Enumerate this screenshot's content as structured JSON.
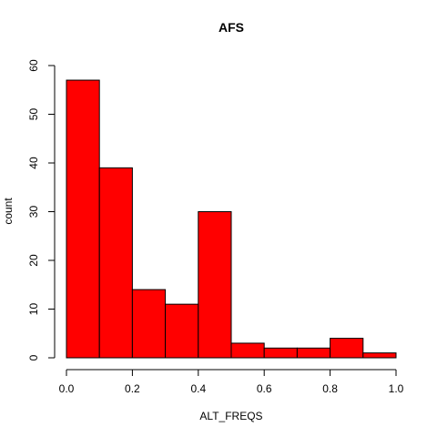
{
  "chart_data": {
    "type": "histogram",
    "title": "AFS",
    "xlabel": "ALT_FREQS",
    "ylabel": "count",
    "bin_edges": [
      0.0,
      0.1,
      0.2,
      0.3,
      0.4,
      0.5,
      0.6,
      0.7,
      0.8,
      0.9,
      1.0
    ],
    "counts": [
      57,
      39,
      14,
      11,
      30,
      3,
      2,
      2,
      4,
      1
    ],
    "xlim": [
      0.0,
      1.0
    ],
    "ylim": [
      0,
      60
    ],
    "x_ticks": [
      0.0,
      0.2,
      0.4,
      0.6,
      0.8,
      1.0
    ],
    "x_tick_labels": [
      "0.0",
      "0.2",
      "0.4",
      "0.6",
      "0.8",
      "1.0"
    ],
    "y_ticks": [
      0,
      10,
      20,
      30,
      40,
      50,
      60
    ],
    "y_tick_labels": [
      "0",
      "10",
      "20",
      "30",
      "40",
      "50",
      "60"
    ],
    "bar_color": "#ff0000",
    "border_color": "#000000",
    "grid": false
  }
}
